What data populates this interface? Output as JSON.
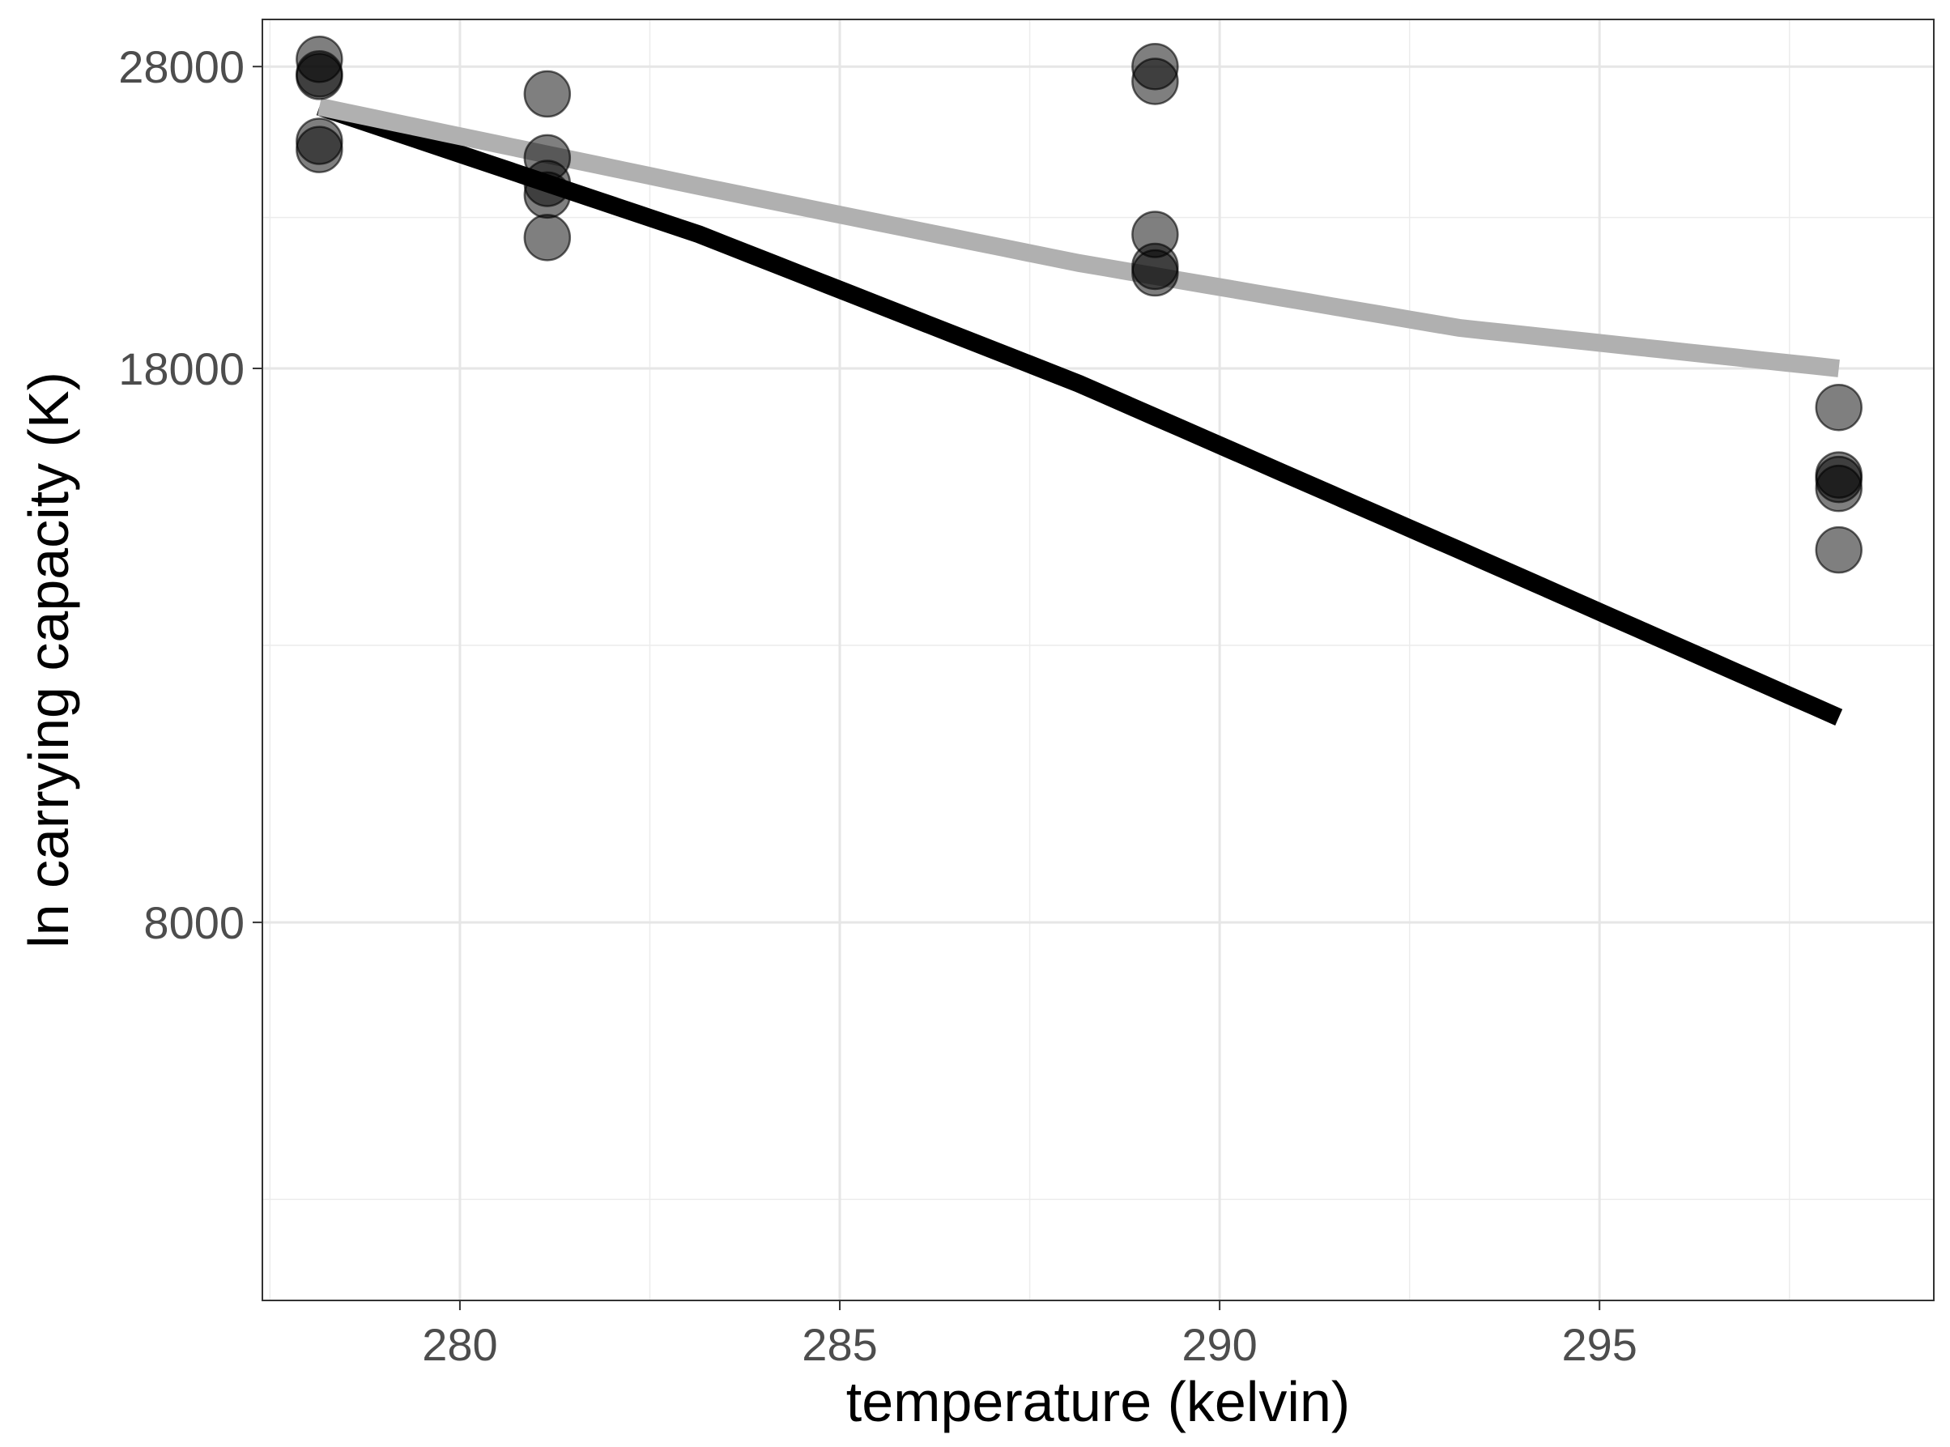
{
  "chart_data": {
    "type": "scatter",
    "title": "",
    "xlabel": "temperature (kelvin)",
    "ylabel": "ln carrying capacity (K)",
    "xlim": [
      277.4,
      299.4
    ],
    "ylim": [
      4600,
      30000
    ],
    "y_scale": "log",
    "grid": true,
    "x_ticks": [
      280,
      285,
      290,
      295
    ],
    "x_tick_labels": [
      "280",
      "285",
      "290",
      "295"
    ],
    "y_ticks": [
      8000,
      18000,
      28000
    ],
    "y_tick_labels": [
      "8000",
      "18000",
      "28000"
    ],
    "series": [
      {
        "kind": "points",
        "color": "#000000",
        "opacity": 0.5,
        "points": [
          [
            278.15,
            28300
          ],
          [
            278.15,
            27700
          ],
          [
            278.15,
            27600
          ],
          [
            278.15,
            25100
          ],
          [
            278.15,
            24800
          ],
          [
            281.15,
            26900
          ],
          [
            281.15,
            24500
          ],
          [
            281.15,
            23600
          ],
          [
            281.15,
            23200
          ],
          [
            281.15,
            21800
          ],
          [
            289.15,
            28000
          ],
          [
            289.15,
            27400
          ],
          [
            289.15,
            21900
          ],
          [
            289.15,
            20900
          ],
          [
            289.15,
            20700
          ],
          [
            298.15,
            17000
          ],
          [
            298.15,
            15400
          ],
          [
            298.15,
            15300
          ],
          [
            298.15,
            15100
          ],
          [
            298.15,
            13800
          ]
        ]
      },
      {
        "kind": "line",
        "color": "#000000",
        "points": [
          [
            278.15,
            26400
          ],
          [
            283.15,
            21900
          ],
          [
            288.15,
            17600
          ],
          [
            293.15,
            13800
          ],
          [
            298.15,
            10800
          ]
        ]
      },
      {
        "kind": "line",
        "color": "#b0b0b0",
        "points": [
          [
            278.15,
            26400
          ],
          [
            283.15,
            23500
          ],
          [
            288.15,
            21000
          ],
          [
            293.15,
            19100
          ],
          [
            298.15,
            18000
          ]
        ]
      }
    ]
  }
}
